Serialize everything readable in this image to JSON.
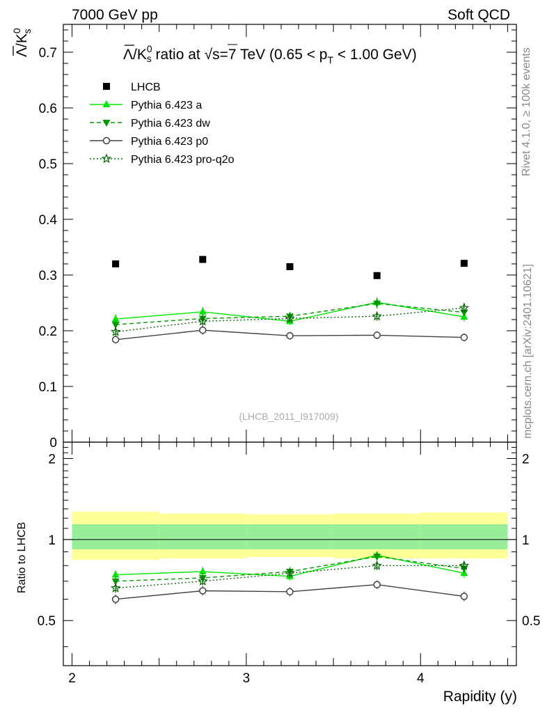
{
  "header": {
    "left": "7000 GeV pp",
    "right": "Soft QCD"
  },
  "side": {
    "rivet": "Rivet 4.1.0, ≥ 100k events",
    "mcplots": "mcplots.cern.ch [arXiv:2401.10621]"
  },
  "chart_data": [
    {
      "type": "scatter",
      "panel": "main",
      "title": "Λ̄/K⁰s ratio at √s=7 TeV (0.65 < pT < 1.00 GeV)",
      "title_parts": {
        "lambda": "Λ",
        "k": "K",
        "k_sup": "0",
        "k_sub": "s",
        "mid": " ratio at ",
        "sqrt": "√",
        "s_eq": "s=7 TeV (0.65 < p",
        "t_sub": "T",
        "tail": " < 1.00 GeV)"
      },
      "ylabel_parts": {
        "lambda": "Λ",
        "k": "K",
        "k_sup": "0",
        "k_sub": "s"
      },
      "ylim": [
        0,
        0.75
      ],
      "yticks": [
        0,
        0.1,
        0.2,
        0.3,
        0.4,
        0.5,
        0.6,
        0.7
      ],
      "ytick_labels": [
        "0",
        "0.1",
        "0.2",
        "0.3",
        "0.4",
        "0.5",
        "0.6",
        "0.7"
      ],
      "xlim": [
        1.95,
        4.55
      ],
      "watermark": "(LHCB_2011_I917009)",
      "legend_position": "top-left",
      "x": [
        2.25,
        2.75,
        3.25,
        3.75,
        4.25
      ],
      "series": [
        {
          "name": "LHCB",
          "style": "data",
          "color": "#000000",
          "marker": "square",
          "values": [
            0.32,
            0.328,
            0.315,
            0.299,
            0.321
          ],
          "errors": [
            0.0,
            0.0,
            0.0,
            0.0,
            0.0
          ],
          "xerr": 0.25
        },
        {
          "name": "Pythia 6.423 a",
          "style": "solid",
          "color": "#00e600",
          "marker": "triangle-up",
          "values": [
            0.221,
            0.234,
            0.217,
            0.251,
            0.225
          ],
          "errors": [
            0.009,
            0.009,
            0.007,
            0.009,
            0.008
          ]
        },
        {
          "name": "Pythia 6.423 dw",
          "style": "dashed",
          "color": "#009900",
          "marker": "triangle-down",
          "values": [
            0.211,
            0.222,
            0.226,
            0.249,
            0.233
          ],
          "errors": [
            0.008,
            0.008,
            0.008,
            0.009,
            0.009
          ]
        },
        {
          "name": "Pythia 6.423 p0",
          "style": "solid",
          "color": "#404040",
          "marker": "open-circle",
          "values": [
            0.184,
            0.201,
            0.191,
            0.192,
            0.188
          ],
          "errors": [
            0.007,
            0.008,
            0.007,
            0.007,
            0.007
          ]
        },
        {
          "name": "Pythia 6.423 pro-q2o",
          "style": "dotted",
          "color": "#006600",
          "marker": "open-star",
          "values": [
            0.198,
            0.217,
            0.222,
            0.226,
            0.241
          ],
          "errors": [
            0.007,
            0.008,
            0.008,
            0.008,
            0.009
          ]
        }
      ]
    },
    {
      "type": "scatter",
      "panel": "ratio",
      "ylabel": "Ratio to LHCB",
      "xlabel": "Rapidity (y)",
      "ylim": [
        0.34,
        2.3
      ],
      "yticks": [
        0.5,
        1,
        2
      ],
      "ytick_labels": [
        "0.5",
        "1",
        "2"
      ],
      "xlim": [
        1.95,
        4.55
      ],
      "xticks": [
        2,
        3,
        4
      ],
      "xtick_labels": [
        "2",
        "3",
        "4"
      ],
      "x": [
        2.25,
        2.75,
        3.25,
        3.75,
        4.25
      ],
      "bands": {
        "x_edges": [
          2.0,
          2.5,
          3.0,
          3.5,
          4.0,
          4.5
        ],
        "outer": [
          [
            0.84,
            1.27
          ],
          [
            0.85,
            1.25
          ],
          [
            0.86,
            1.24
          ],
          [
            0.85,
            1.25
          ],
          [
            0.85,
            1.26
          ]
        ],
        "inner": [
          [
            0.92,
            1.14
          ],
          [
            0.92,
            1.14
          ],
          [
            0.92,
            1.14
          ],
          [
            0.92,
            1.14
          ],
          [
            0.92,
            1.14
          ]
        ],
        "outer_color": "#ffff99",
        "inner_color": "#99ee99"
      },
      "series": [
        {
          "name": "Pythia 6.423 a",
          "style": "solid",
          "color": "#00e600",
          "marker": "triangle-up",
          "values": [
            0.74,
            0.76,
            0.73,
            0.875,
            0.75
          ],
          "errors": [
            0.03,
            0.03,
            0.025,
            0.03,
            0.03
          ]
        },
        {
          "name": "Pythia 6.423 dw",
          "style": "dashed",
          "color": "#009900",
          "marker": "triangle-down",
          "values": [
            0.7,
            0.72,
            0.76,
            0.865,
            0.78
          ],
          "errors": [
            0.03,
            0.03,
            0.03,
            0.03,
            0.03
          ]
        },
        {
          "name": "Pythia 6.423 p0",
          "style": "solid",
          "color": "#404040",
          "marker": "open-circle",
          "values": [
            0.6,
            0.645,
            0.64,
            0.68,
            0.615
          ],
          "errors": [
            0.025,
            0.025,
            0.025,
            0.025,
            0.025
          ]
        },
        {
          "name": "Pythia 6.423 pro-q2o",
          "style": "dotted",
          "color": "#006600",
          "marker": "open-star",
          "values": [
            0.66,
            0.7,
            0.75,
            0.8,
            0.8
          ],
          "errors": [
            0.025,
            0.025,
            0.03,
            0.03,
            0.03
          ]
        }
      ]
    }
  ]
}
